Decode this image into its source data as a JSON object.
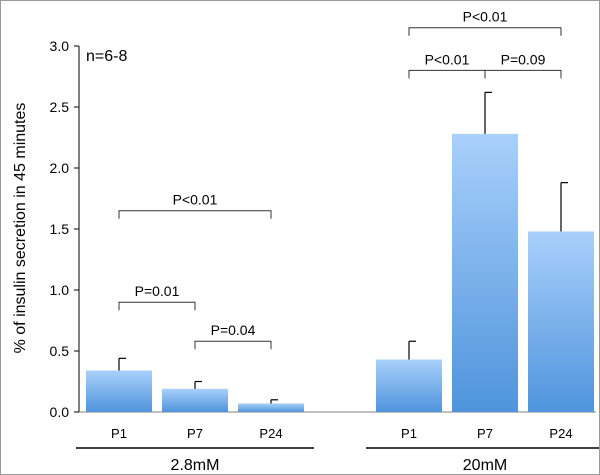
{
  "chart_data": {
    "type": "bar",
    "title": "",
    "ylabel": "% of insulin secretion in 45 minutes",
    "xlabel": "",
    "ylim": [
      0,
      3.0
    ],
    "yticks": [
      "0.0",
      "0.5",
      "1.0",
      "1.5",
      "2.0",
      "2.5",
      "3.0"
    ],
    "grid": false,
    "annotation": "n=6-8",
    "groups": [
      {
        "label": "2.8mM",
        "categories": [
          "P1",
          "P7",
          "P24"
        ],
        "values": [
          0.34,
          0.19,
          0.07
        ],
        "errors": [
          0.1,
          0.06,
          0.03
        ]
      },
      {
        "label": "20mM",
        "categories": [
          "P1",
          "P7",
          "P24"
        ],
        "values": [
          0.43,
          2.28,
          1.48
        ],
        "errors": [
          0.15,
          0.34,
          0.4
        ]
      }
    ],
    "comparisons": [
      {
        "group": 0,
        "from": 0,
        "to": 2,
        "label": "P<0.01",
        "level": 1.65
      },
      {
        "group": 0,
        "from": 0,
        "to": 1,
        "label": "P=0.01",
        "level": 0.9
      },
      {
        "group": 0,
        "from": 1,
        "to": 2,
        "label": "P=0.04",
        "level": 0.58
      },
      {
        "group": 1,
        "from": 0,
        "to": 2,
        "label": "P<0.01",
        "level": 3.15
      },
      {
        "group": 1,
        "from": 0,
        "to": 1,
        "label": "P<0.01",
        "level": 2.8
      },
      {
        "group": 1,
        "from": 1,
        "to": 2,
        "label": "P=0.09",
        "level": 2.8
      }
    ],
    "colors": {
      "bar_top": "#a9d0fb",
      "bar_bottom": "#4f94dc",
      "axis": "#000000"
    }
  }
}
